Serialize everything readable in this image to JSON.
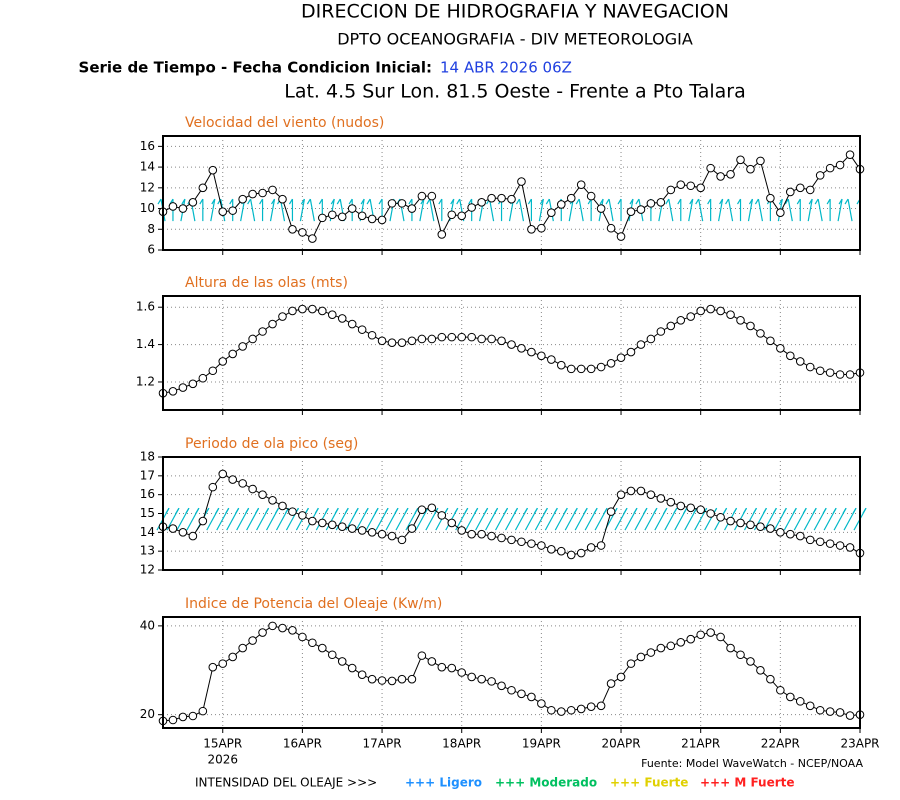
{
  "header": {
    "title": "DIRECCION DE HIDROGRAFIA Y NAVEGACION",
    "subtitle": "DPTO OCEANOGRAFIA - DIV METEOROLOGIA",
    "series_label": "Serie de Tiempo - Fecha Condicion Inicial:",
    "init_date": "14 ABR 2026 06Z",
    "location": "Lat. 4.5 Sur  Lon. 81.5 Oeste - Frente a Pto Talara"
  },
  "footer": {
    "source": "Fuente: Model WaveWatch - NCEP/NOAA",
    "legend_title": "INTENSIDAD DEL OLEAJE >>>",
    "legend": [
      {
        "name": "+++ Ligero",
        "color": "#1e90ff"
      },
      {
        "name": "+++ Moderado",
        "color": "#00c060"
      },
      {
        "name": "+++ Fuerte",
        "color": "#e0d000"
      },
      {
        "name": "+++ M Fuerte",
        "color": "#ff2020"
      }
    ]
  },
  "chart_data": [
    {
      "type": "line",
      "title": "Velocidad del viento (nudos)",
      "color": "#000000",
      "marker": "circle",
      "grid": true,
      "direction_arrows": true,
      "arrow_color": "#00b8c8",
      "x": [
        0.25,
        0.375,
        0.5,
        0.625,
        0.75,
        0.875,
        1,
        1.125,
        1.25,
        1.375,
        1.5,
        1.625,
        1.75,
        1.875,
        2,
        2.125,
        2.25,
        2.375,
        2.5,
        2.625,
        2.75,
        2.875,
        3,
        3.125,
        3.25,
        3.375,
        3.5,
        3.625,
        3.75,
        3.875,
        4,
        4.125,
        4.25,
        4.375,
        4.5,
        4.625,
        4.75,
        4.875,
        5,
        5.125,
        5.25,
        5.375,
        5.5,
        5.625,
        5.75,
        5.875,
        6,
        6.125,
        6.25,
        6.375,
        6.5,
        6.625,
        6.75,
        6.875,
        7,
        7.125,
        7.25,
        7.375,
        7.5,
        7.625,
        7.75,
        7.875,
        8,
        8.125,
        8.25,
        8.375,
        8.5,
        8.625,
        8.75,
        8.875,
        9
      ],
      "values": [
        9.7,
        10.2,
        10,
        10.6,
        12,
        13.7,
        9.7,
        9.8,
        10.9,
        11.4,
        11.5,
        11.8,
        10.9,
        8,
        7.7,
        7.1,
        9.1,
        9.4,
        9.2,
        10,
        9.3,
        9,
        8.9,
        10.5,
        10.5,
        10,
        11.2,
        11.2,
        7.5,
        9.4,
        9.3,
        10.1,
        10.6,
        11,
        11,
        10.9,
        12.6,
        8,
        8.1,
        9.6,
        10.4,
        11,
        12.3,
        11.2,
        10,
        8.1,
        7.3,
        9.7,
        9.9,
        10.5,
        10.6,
        11.8,
        12.3,
        12.2,
        12,
        13.9,
        13.1,
        13.3,
        14.7,
        13.8,
        14.6,
        11,
        9.6,
        11.6,
        12,
        11.8,
        13.2,
        13.9,
        14.2,
        15.2,
        13.8
      ],
      "xlim": [
        0.25,
        9
      ],
      "xticks": [
        1,
        2,
        3,
        4,
        5,
        6,
        7,
        8,
        9
      ],
      "ylim": [
        6,
        17
      ],
      "yticks": [
        6,
        8,
        10,
        12,
        14,
        16
      ]
    },
    {
      "type": "line",
      "title": "Altura de las olas (mts)",
      "color": "#000000",
      "marker": "circle",
      "grid": true,
      "x": [
        0.25,
        0.375,
        0.5,
        0.625,
        0.75,
        0.875,
        1,
        1.125,
        1.25,
        1.375,
        1.5,
        1.625,
        1.75,
        1.875,
        2,
        2.125,
        2.25,
        2.375,
        2.5,
        2.625,
        2.75,
        2.875,
        3,
        3.125,
        3.25,
        3.375,
        3.5,
        3.625,
        3.75,
        3.875,
        4,
        4.125,
        4.25,
        4.375,
        4.5,
        4.625,
        4.75,
        4.875,
        5,
        5.125,
        5.25,
        5.375,
        5.5,
        5.625,
        5.75,
        5.875,
        6,
        6.125,
        6.25,
        6.375,
        6.5,
        6.625,
        6.75,
        6.875,
        7,
        7.125,
        7.25,
        7.375,
        7.5,
        7.625,
        7.75,
        7.875,
        8,
        8.125,
        8.25,
        8.375,
        8.5,
        8.625,
        8.75,
        8.875,
        9
      ],
      "values": [
        1.14,
        1.15,
        1.17,
        1.19,
        1.22,
        1.26,
        1.31,
        1.35,
        1.39,
        1.43,
        1.47,
        1.51,
        1.55,
        1.58,
        1.59,
        1.59,
        1.58,
        1.56,
        1.54,
        1.51,
        1.48,
        1.45,
        1.42,
        1.41,
        1.41,
        1.42,
        1.43,
        1.43,
        1.44,
        1.44,
        1.44,
        1.44,
        1.43,
        1.43,
        1.42,
        1.4,
        1.38,
        1.36,
        1.34,
        1.32,
        1.29,
        1.27,
        1.27,
        1.27,
        1.28,
        1.3,
        1.33,
        1.36,
        1.4,
        1.43,
        1.47,
        1.5,
        1.53,
        1.55,
        1.58,
        1.59,
        1.58,
        1.56,
        1.53,
        1.5,
        1.46,
        1.42,
        1.38,
        1.34,
        1.31,
        1.28,
        1.26,
        1.25,
        1.24,
        1.24,
        1.25
      ],
      "xlim": [
        0.25,
        9
      ],
      "xticks": [
        1,
        2,
        3,
        4,
        5,
        6,
        7,
        8,
        9
      ],
      "ylim": [
        1.05,
        1.66
      ],
      "yticks": [
        1.2,
        1.4,
        1.6
      ]
    },
    {
      "type": "line",
      "title": "Periodo de ola pico (seg)",
      "color": "#000000",
      "marker": "circle",
      "grid": true,
      "direction_arrows": true,
      "arrow_color": "#00b8c8",
      "x": [
        0.25,
        0.375,
        0.5,
        0.625,
        0.75,
        0.875,
        1,
        1.125,
        1.25,
        1.375,
        1.5,
        1.625,
        1.75,
        1.875,
        2,
        2.125,
        2.25,
        2.375,
        2.5,
        2.625,
        2.75,
        2.875,
        3,
        3.125,
        3.25,
        3.375,
        3.5,
        3.625,
        3.75,
        3.875,
        4,
        4.125,
        4.25,
        4.375,
        4.5,
        4.625,
        4.75,
        4.875,
        5,
        5.125,
        5.25,
        5.375,
        5.5,
        5.625,
        5.75,
        5.875,
        6,
        6.125,
        6.25,
        6.375,
        6.5,
        6.625,
        6.75,
        6.875,
        7,
        7.125,
        7.25,
        7.375,
        7.5,
        7.625,
        7.75,
        7.875,
        8,
        8.125,
        8.25,
        8.375,
        8.5,
        8.625,
        8.75,
        8.875,
        9
      ],
      "values": [
        14.3,
        14.2,
        14,
        13.8,
        14.6,
        16.4,
        17.1,
        16.8,
        16.6,
        16.3,
        16,
        15.7,
        15.4,
        15.1,
        14.9,
        14.6,
        14.5,
        14.4,
        14.3,
        14.2,
        14.1,
        14,
        13.9,
        13.8,
        13.6,
        14.2,
        15.2,
        15.3,
        14.9,
        14.5,
        14.1,
        13.9,
        13.9,
        13.8,
        13.7,
        13.6,
        13.5,
        13.4,
        13.3,
        13.1,
        13,
        12.8,
        12.9,
        13.2,
        13.3,
        15.1,
        16,
        16.2,
        16.2,
        16,
        15.8,
        15.6,
        15.4,
        15.3,
        15.2,
        15,
        14.8,
        14.6,
        14.5,
        14.4,
        14.3,
        14.2,
        14,
        13.9,
        13.8,
        13.6,
        13.5,
        13.4,
        13.3,
        13.2,
        12.9
      ],
      "xlim": [
        0.25,
        9
      ],
      "xticks": [
        1,
        2,
        3,
        4,
        5,
        6,
        7,
        8,
        9
      ],
      "ylim": [
        12,
        18
      ],
      "yticks": [
        12,
        13,
        14,
        15,
        16,
        17,
        18
      ]
    },
    {
      "type": "line",
      "title": "Indice de Potencia del Oleaje (Kw/m)",
      "color": "#000000",
      "marker": "circle",
      "grid": true,
      "x_sublabel": "2026",
      "x": [
        0.25,
        0.375,
        0.5,
        0.625,
        0.75,
        0.875,
        1,
        1.125,
        1.25,
        1.375,
        1.5,
        1.625,
        1.75,
        1.875,
        2,
        2.125,
        2.25,
        2.375,
        2.5,
        2.625,
        2.75,
        2.875,
        3,
        3.125,
        3.25,
        3.375,
        3.5,
        3.625,
        3.75,
        3.875,
        4,
        4.125,
        4.25,
        4.375,
        4.5,
        4.625,
        4.75,
        4.875,
        5,
        5.125,
        5.25,
        5.375,
        5.5,
        5.625,
        5.75,
        5.875,
        6,
        6.125,
        6.25,
        6.375,
        6.5,
        6.625,
        6.75,
        6.875,
        7,
        7.125,
        7.25,
        7.375,
        7.5,
        7.625,
        7.75,
        7.875,
        8,
        8.125,
        8.25,
        8.375,
        8.5,
        8.625,
        8.75,
        8.875,
        9
      ],
      "values": [
        18.6,
        18.8,
        19.5,
        19.7,
        20.8,
        30.7,
        31.5,
        33,
        35,
        36.7,
        38.5,
        40,
        39.5,
        39,
        37.5,
        36.2,
        35,
        33.5,
        32,
        30.5,
        29,
        28,
        27.7,
        27.6,
        28,
        28,
        33.3,
        32,
        30.7,
        30.5,
        29.5,
        28.5,
        28,
        27.5,
        26.5,
        25.5,
        24.7,
        24,
        22.5,
        21,
        20.7,
        21,
        21.3,
        21.8,
        22,
        27,
        28.5,
        31.5,
        33,
        34,
        35,
        35.5,
        36.3,
        37,
        38,
        38.5,
        37.5,
        35,
        33.5,
        32,
        30,
        28,
        25.5,
        24,
        23,
        22,
        21,
        20.7,
        20.5,
        19.8,
        20
      ],
      "xlim": [
        0.25,
        9
      ],
      "xticks": [
        {
          "value": 1,
          "label": "15APR"
        },
        {
          "value": 2,
          "label": "16APR"
        },
        {
          "value": 3,
          "label": "17APR"
        },
        {
          "value": 4,
          "label": "18APR"
        },
        {
          "value": 5,
          "label": "19APR"
        },
        {
          "value": 6,
          "label": "20APR"
        },
        {
          "value": 7,
          "label": "21APR"
        },
        {
          "value": 8,
          "label": "22APR"
        },
        {
          "value": 9,
          "label": "23APR"
        }
      ],
      "ylim": [
        17,
        42
      ],
      "yticks": [
        20,
        40
      ]
    }
  ]
}
